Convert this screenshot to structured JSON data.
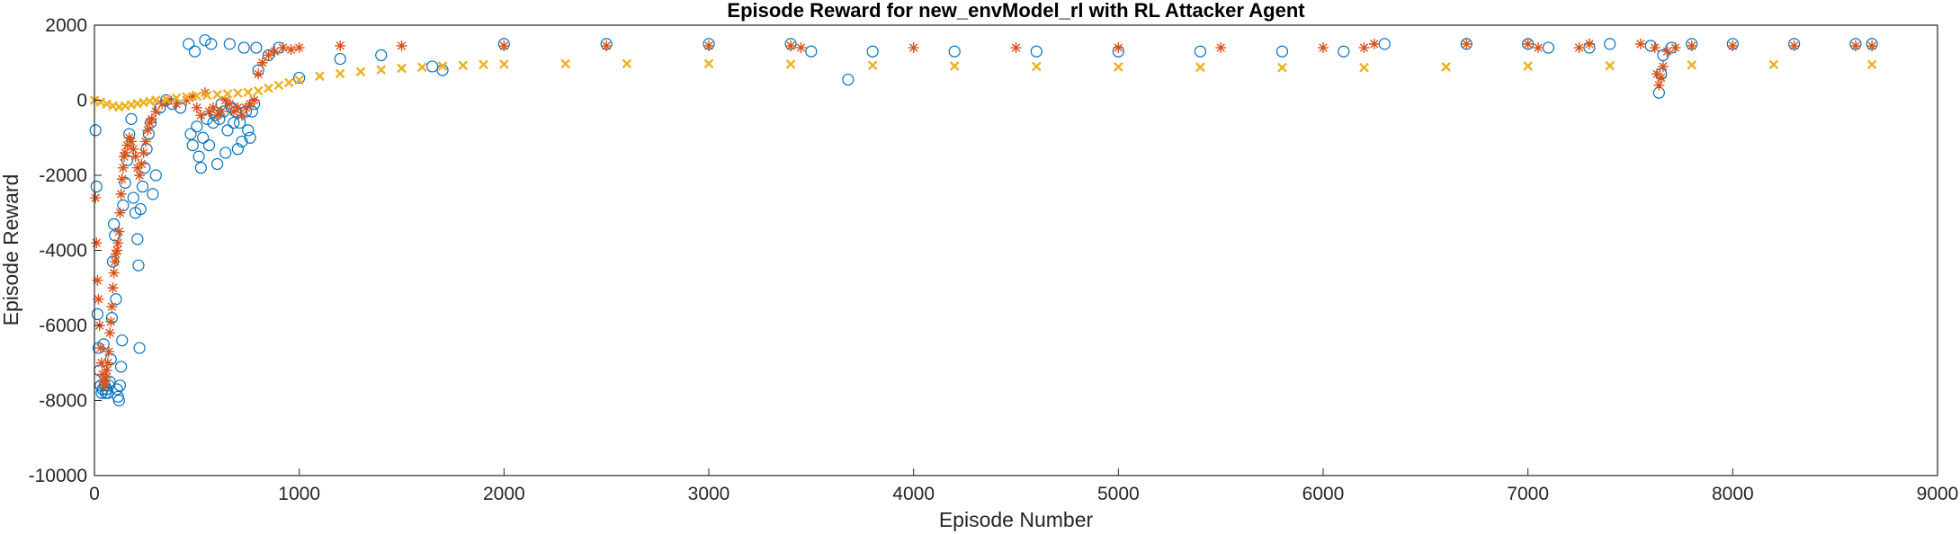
{
  "chart_data": {
    "type": "scatter",
    "title": "Episode Reward for new_envModel_rl with RL Attacker Agent",
    "xlabel": "Episode Number",
    "ylabel": "Episode Reward",
    "xlim": [
      0,
      9000
    ],
    "ylim": [
      -10000,
      2000
    ],
    "xticks": [
      0,
      1000,
      2000,
      3000,
      4000,
      5000,
      6000,
      7000,
      8000,
      9000
    ],
    "yticks": [
      -10000,
      -8000,
      -6000,
      -4000,
      -2000,
      0,
      2000
    ],
    "grid": false,
    "legend": "none",
    "series": [
      {
        "marker": "circle",
        "color": "#0072BD",
        "points": [
          [
            5,
            -800
          ],
          [
            10,
            -2300
          ],
          [
            15,
            -5700
          ],
          [
            20,
            -6600
          ],
          [
            25,
            -7200
          ],
          [
            30,
            -7600
          ],
          [
            35,
            -7800
          ],
          [
            40,
            -7700
          ],
          [
            45,
            -6500
          ],
          [
            50,
            -7600
          ],
          [
            55,
            -7800
          ],
          [
            60,
            -7700
          ],
          [
            65,
            -7800
          ],
          [
            70,
            -7600
          ],
          [
            75,
            -7500
          ],
          [
            80,
            -6900
          ],
          [
            85,
            -5800
          ],
          [
            90,
            -4300
          ],
          [
            95,
            -3300
          ],
          [
            100,
            -3600
          ],
          [
            105,
            -5300
          ],
          [
            110,
            -7700
          ],
          [
            115,
            -7900
          ],
          [
            120,
            -8000
          ],
          [
            125,
            -7600
          ],
          [
            130,
            -7100
          ],
          [
            135,
            -6400
          ],
          [
            140,
            -2800
          ],
          [
            150,
            -2200
          ],
          [
            160,
            -1600
          ],
          [
            170,
            -900
          ],
          [
            180,
            -500
          ],
          [
            190,
            -2600
          ],
          [
            200,
            -3000
          ],
          [
            210,
            -3700
          ],
          [
            215,
            -4400
          ],
          [
            220,
            -6600
          ],
          [
            225,
            -2900
          ],
          [
            235,
            -2300
          ],
          [
            245,
            -1800
          ],
          [
            255,
            -1300
          ],
          [
            265,
            -900
          ],
          [
            275,
            -600
          ],
          [
            285,
            -2500
          ],
          [
            300,
            -2000
          ],
          [
            320,
            -200
          ],
          [
            350,
            0
          ],
          [
            380,
            -100
          ],
          [
            420,
            -200
          ],
          [
            460,
            1500
          ],
          [
            470,
            -900
          ],
          [
            480,
            -1200
          ],
          [
            490,
            1300
          ],
          [
            500,
            -700
          ],
          [
            510,
            -1500
          ],
          [
            520,
            -1800
          ],
          [
            530,
            -1000
          ],
          [
            540,
            1600
          ],
          [
            550,
            -500
          ],
          [
            560,
            -1200
          ],
          [
            570,
            1500
          ],
          [
            580,
            -600
          ],
          [
            590,
            -400
          ],
          [
            600,
            -1700
          ],
          [
            610,
            -500
          ],
          [
            620,
            -100
          ],
          [
            630,
            -300
          ],
          [
            640,
            -1400
          ],
          [
            650,
            -800
          ],
          [
            660,
            1500
          ],
          [
            670,
            -200
          ],
          [
            680,
            -600
          ],
          [
            690,
            -300
          ],
          [
            700,
            -1300
          ],
          [
            710,
            -600
          ],
          [
            720,
            -1100
          ],
          [
            730,
            1400
          ],
          [
            740,
            -300
          ],
          [
            750,
            -800
          ],
          [
            760,
            -1000
          ],
          [
            770,
            -300
          ],
          [
            780,
            -100
          ],
          [
            790,
            1400
          ],
          [
            800,
            800
          ],
          [
            850,
            1200
          ],
          [
            900,
            1400
          ],
          [
            1000,
            600
          ],
          [
            1200,
            1100
          ],
          [
            1400,
            1200
          ],
          [
            1650,
            900
          ],
          [
            1700,
            800
          ],
          [
            2000,
            1500
          ],
          [
            2500,
            1500
          ],
          [
            3000,
            1500
          ],
          [
            3400,
            1500
          ],
          [
            3500,
            1300
          ],
          [
            3680,
            550
          ],
          [
            3800,
            1300
          ],
          [
            4200,
            1300
          ],
          [
            4600,
            1300
          ],
          [
            5000,
            1300
          ],
          [
            5400,
            1300
          ],
          [
            5800,
            1300
          ],
          [
            6100,
            1300
          ],
          [
            6300,
            1500
          ],
          [
            6700,
            1500
          ],
          [
            7000,
            1500
          ],
          [
            7100,
            1400
          ],
          [
            7300,
            1400
          ],
          [
            7400,
            1500
          ],
          [
            7600,
            1450
          ],
          [
            7640,
            200
          ],
          [
            7650,
            700
          ],
          [
            7660,
            1200
          ],
          [
            7700,
            1400
          ],
          [
            7800,
            1500
          ],
          [
            8000,
            1500
          ],
          [
            8300,
            1500
          ],
          [
            8600,
            1500
          ],
          [
            8680,
            1500
          ]
        ]
      },
      {
        "marker": "asterisk",
        "color": "#D95319",
        "points": [
          [
            5,
            -2600
          ],
          [
            10,
            -3800
          ],
          [
            15,
            -4800
          ],
          [
            20,
            -5300
          ],
          [
            25,
            -6000
          ],
          [
            30,
            -6600
          ],
          [
            35,
            -7000
          ],
          [
            40,
            -7300
          ],
          [
            45,
            -7500
          ],
          [
            50,
            -7600
          ],
          [
            55,
            -7400
          ],
          [
            60,
            -7200
          ],
          [
            65,
            -7000
          ],
          [
            70,
            -6700
          ],
          [
            75,
            -6200
          ],
          [
            80,
            -5900
          ],
          [
            85,
            -5500
          ],
          [
            90,
            -5000
          ],
          [
            95,
            -4600
          ],
          [
            100,
            -4300
          ],
          [
            105,
            -4100
          ],
          [
            110,
            -4000
          ],
          [
            115,
            -3800
          ],
          [
            120,
            -3500
          ],
          [
            125,
            -3000
          ],
          [
            130,
            -2500
          ],
          [
            135,
            -2100
          ],
          [
            140,
            -1800
          ],
          [
            145,
            -1500
          ],
          [
            150,
            -1400
          ],
          [
            160,
            -1200
          ],
          [
            170,
            -1000
          ],
          [
            180,
            -1100
          ],
          [
            190,
            -1300
          ],
          [
            200,
            -1500
          ],
          [
            210,
            -1800
          ],
          [
            220,
            -2000
          ],
          [
            230,
            -1700
          ],
          [
            240,
            -1400
          ],
          [
            250,
            -1100
          ],
          [
            260,
            -800
          ],
          [
            270,
            -600
          ],
          [
            280,
            -500
          ],
          [
            300,
            -300
          ],
          [
            330,
            -100
          ],
          [
            360,
            0
          ],
          [
            400,
            -100
          ],
          [
            450,
            0
          ],
          [
            480,
            100
          ],
          [
            500,
            -200
          ],
          [
            520,
            -400
          ],
          [
            540,
            200
          ],
          [
            560,
            -300
          ],
          [
            580,
            -200
          ],
          [
            600,
            -400
          ],
          [
            620,
            -300
          ],
          [
            640,
            0
          ],
          [
            660,
            -100
          ],
          [
            680,
            -300
          ],
          [
            700,
            -200
          ],
          [
            720,
            -400
          ],
          [
            740,
            -200
          ],
          [
            760,
            -100
          ],
          [
            780,
            0
          ],
          [
            800,
            700
          ],
          [
            820,
            1000
          ],
          [
            850,
            1200
          ],
          [
            880,
            1300
          ],
          [
            920,
            1400
          ],
          [
            960,
            1350
          ],
          [
            1000,
            1400
          ],
          [
            1200,
            1450
          ],
          [
            1500,
            1450
          ],
          [
            2000,
            1450
          ],
          [
            2500,
            1450
          ],
          [
            3000,
            1450
          ],
          [
            3400,
            1450
          ],
          [
            3450,
            1400
          ],
          [
            4000,
            1400
          ],
          [
            4500,
            1400
          ],
          [
            5000,
            1400
          ],
          [
            5500,
            1400
          ],
          [
            6000,
            1400
          ],
          [
            6200,
            1400
          ],
          [
            6250,
            1500
          ],
          [
            6700,
            1500
          ],
          [
            7000,
            1500
          ],
          [
            7050,
            1400
          ],
          [
            7250,
            1400
          ],
          [
            7300,
            1500
          ],
          [
            7550,
            1500
          ],
          [
            7620,
            1400
          ],
          [
            7630,
            700
          ],
          [
            7640,
            400
          ],
          [
            7650,
            600
          ],
          [
            7660,
            900
          ],
          [
            7680,
            1300
          ],
          [
            7720,
            1400
          ],
          [
            7800,
            1450
          ],
          [
            8000,
            1450
          ],
          [
            8300,
            1450
          ],
          [
            8600,
            1450
          ],
          [
            8680,
            1450
          ]
        ]
      },
      {
        "marker": "x",
        "color": "#EDB120",
        "points": [
          [
            0,
            0
          ],
          [
            30,
            -50
          ],
          [
            60,
            -100
          ],
          [
            90,
            -150
          ],
          [
            120,
            -180
          ],
          [
            150,
            -150
          ],
          [
            180,
            -120
          ],
          [
            210,
            -90
          ],
          [
            240,
            -60
          ],
          [
            270,
            -30
          ],
          [
            300,
            0
          ],
          [
            350,
            30
          ],
          [
            400,
            60
          ],
          [
            450,
            90
          ],
          [
            500,
            110
          ],
          [
            550,
            130
          ],
          [
            600,
            150
          ],
          [
            650,
            170
          ],
          [
            700,
            190
          ],
          [
            750,
            210
          ],
          [
            800,
            250
          ],
          [
            850,
            320
          ],
          [
            900,
            400
          ],
          [
            950,
            470
          ],
          [
            1000,
            540
          ],
          [
            1100,
            640
          ],
          [
            1200,
            710
          ],
          [
            1300,
            760
          ],
          [
            1400,
            810
          ],
          [
            1500,
            850
          ],
          [
            1600,
            880
          ],
          [
            1700,
            910
          ],
          [
            1800,
            930
          ],
          [
            1900,
            950
          ],
          [
            2000,
            960
          ],
          [
            2300,
            970
          ],
          [
            2600,
            975
          ],
          [
            3000,
            975
          ],
          [
            3400,
            960
          ],
          [
            3800,
            930
          ],
          [
            4200,
            910
          ],
          [
            4600,
            900
          ],
          [
            5000,
            890
          ],
          [
            5400,
            880
          ],
          [
            5800,
            870
          ],
          [
            6200,
            870
          ],
          [
            6600,
            890
          ],
          [
            7000,
            910
          ],
          [
            7400,
            920
          ],
          [
            7800,
            940
          ],
          [
            8200,
            950
          ],
          [
            8680,
            950
          ]
        ]
      }
    ]
  }
}
